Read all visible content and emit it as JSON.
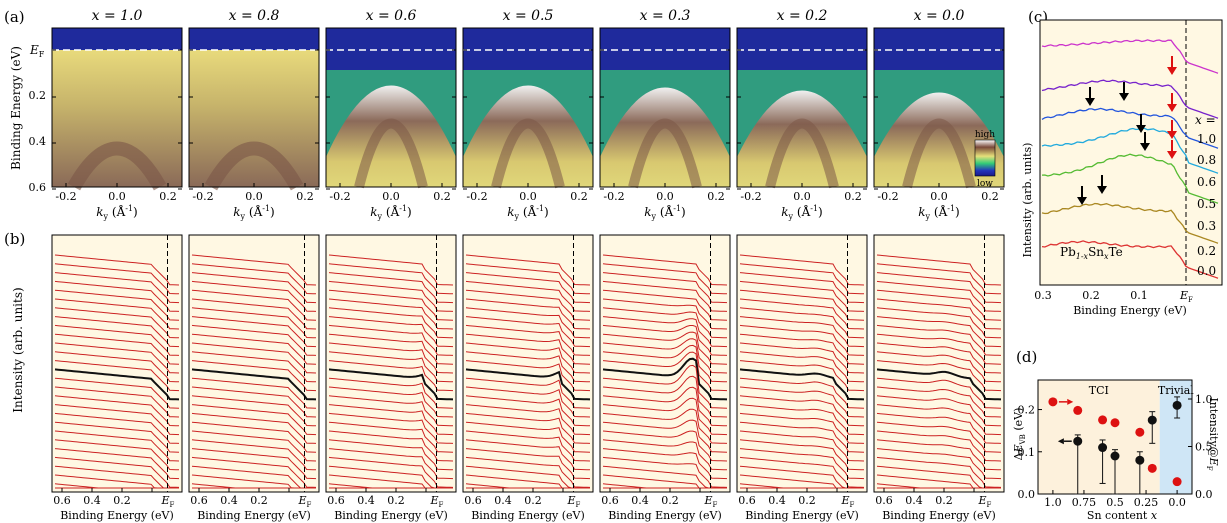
{
  "figure": {
    "panel_labels": {
      "a": "(a)",
      "b": "(b)",
      "c": "(c)",
      "d": "(d)"
    },
    "colorbar": {
      "high": "high",
      "low": "low"
    }
  },
  "panel_a": {
    "ylabel": "Binding Energy (eV)",
    "y_ticks": [
      "0.2",
      "0.4",
      "0.6"
    ],
    "ef_label": "E",
    "ef_sub": "F",
    "x_ticks": [
      "-0.2",
      "0.0",
      "0.2"
    ],
    "xlabel_main": "k",
    "xlabel_sub": "y",
    "xlabel_unit": "(Å",
    "xlabel_exp": "-1",
    "xlabel_close": ")",
    "compositions": [
      "x = 1.0",
      "x = 0.8",
      "x = 0.6",
      "x = 0.5",
      "x = 0.3",
      "x = 0.2",
      "x = 0.0"
    ]
  },
  "panel_b": {
    "ylabel": "Intensity (arb. units)",
    "x_ticks": [
      "0.6",
      "0.4",
      "0.2"
    ],
    "ef_label": "E",
    "ef_sub": "F",
    "xlabel": "Binding Energy (eV)"
  },
  "panel_c": {
    "ylabel": "Intensity (arb. units)",
    "xlabel": "Binding Energy (eV)",
    "x_ticks": [
      "0.3",
      "0.2",
      "0.1"
    ],
    "ef_label": "E",
    "ef_sub": "F",
    "x_header": "x =",
    "compound_a": "Pb",
    "compound_a_sub": "1-x",
    "compound_b": "Sn",
    "compound_b_sub": "x",
    "compound_c": "Te",
    "curves": [
      {
        "label": "1.0",
        "color": "#cc33cc"
      },
      {
        "label": "0.8",
        "color": "#7722cc"
      },
      {
        "label": "0.6",
        "color": "#2255dd"
      },
      {
        "label": "0.5",
        "color": "#22aadd"
      },
      {
        "label": "0.3",
        "color": "#55bb33"
      },
      {
        "label": "0.2",
        "color": "#aa8822"
      },
      {
        "label": "0.0",
        "color": "#dd3333"
      }
    ]
  },
  "chart_data": {
    "type": "scatter",
    "panel": "(d)",
    "xlabel": "Sn content x",
    "ylabel_left": "ΔE_VB (eV)",
    "ylabel_right": "Intensity@E_F",
    "x_ticks": [
      1.0,
      0.75,
      0.5,
      0.25,
      0.0
    ],
    "xlim": [
      1.12,
      -0.12
    ],
    "ylim_left": [
      0.0,
      0.27
    ],
    "ylim_right": [
      0.0,
      1.2
    ],
    "y_ticks_left": [
      0.0,
      0.1,
      0.2
    ],
    "y_ticks_right": [
      0.0,
      0.5,
      1.0
    ],
    "regions": [
      {
        "label": "TCI",
        "from": 1.12,
        "to": 0.14,
        "color": "#fdf1dc"
      },
      {
        "label": "Trivial",
        "from": 0.14,
        "to": -0.12,
        "color": "#cfe6f6"
      }
    ],
    "series": [
      {
        "axis": "left",
        "color": "#111111",
        "x": [
          0.8,
          0.6,
          0.5,
          0.3,
          0.2,
          0.0
        ],
        "y": [
          0.125,
          0.11,
          0.09,
          0.08,
          0.175,
          0.21
        ],
        "err_low": [
          0.125,
          0.085,
          0.09,
          0.08,
          0.055,
          0.03
        ],
        "err_high": [
          0.015,
          0.018,
          0.015,
          0.02,
          0.02,
          0.02
        ]
      },
      {
        "axis": "right",
        "color": "#dd1111",
        "x": [
          1.0,
          0.8,
          0.6,
          0.5,
          0.3,
          0.2,
          0.0
        ],
        "y": [
          0.97,
          0.88,
          0.78,
          0.75,
          0.65,
          0.27,
          0.13
        ],
        "err": [
          0.04,
          0.04,
          0.04,
          0.04,
          0.04,
          0.03,
          0.03
        ]
      }
    ]
  }
}
